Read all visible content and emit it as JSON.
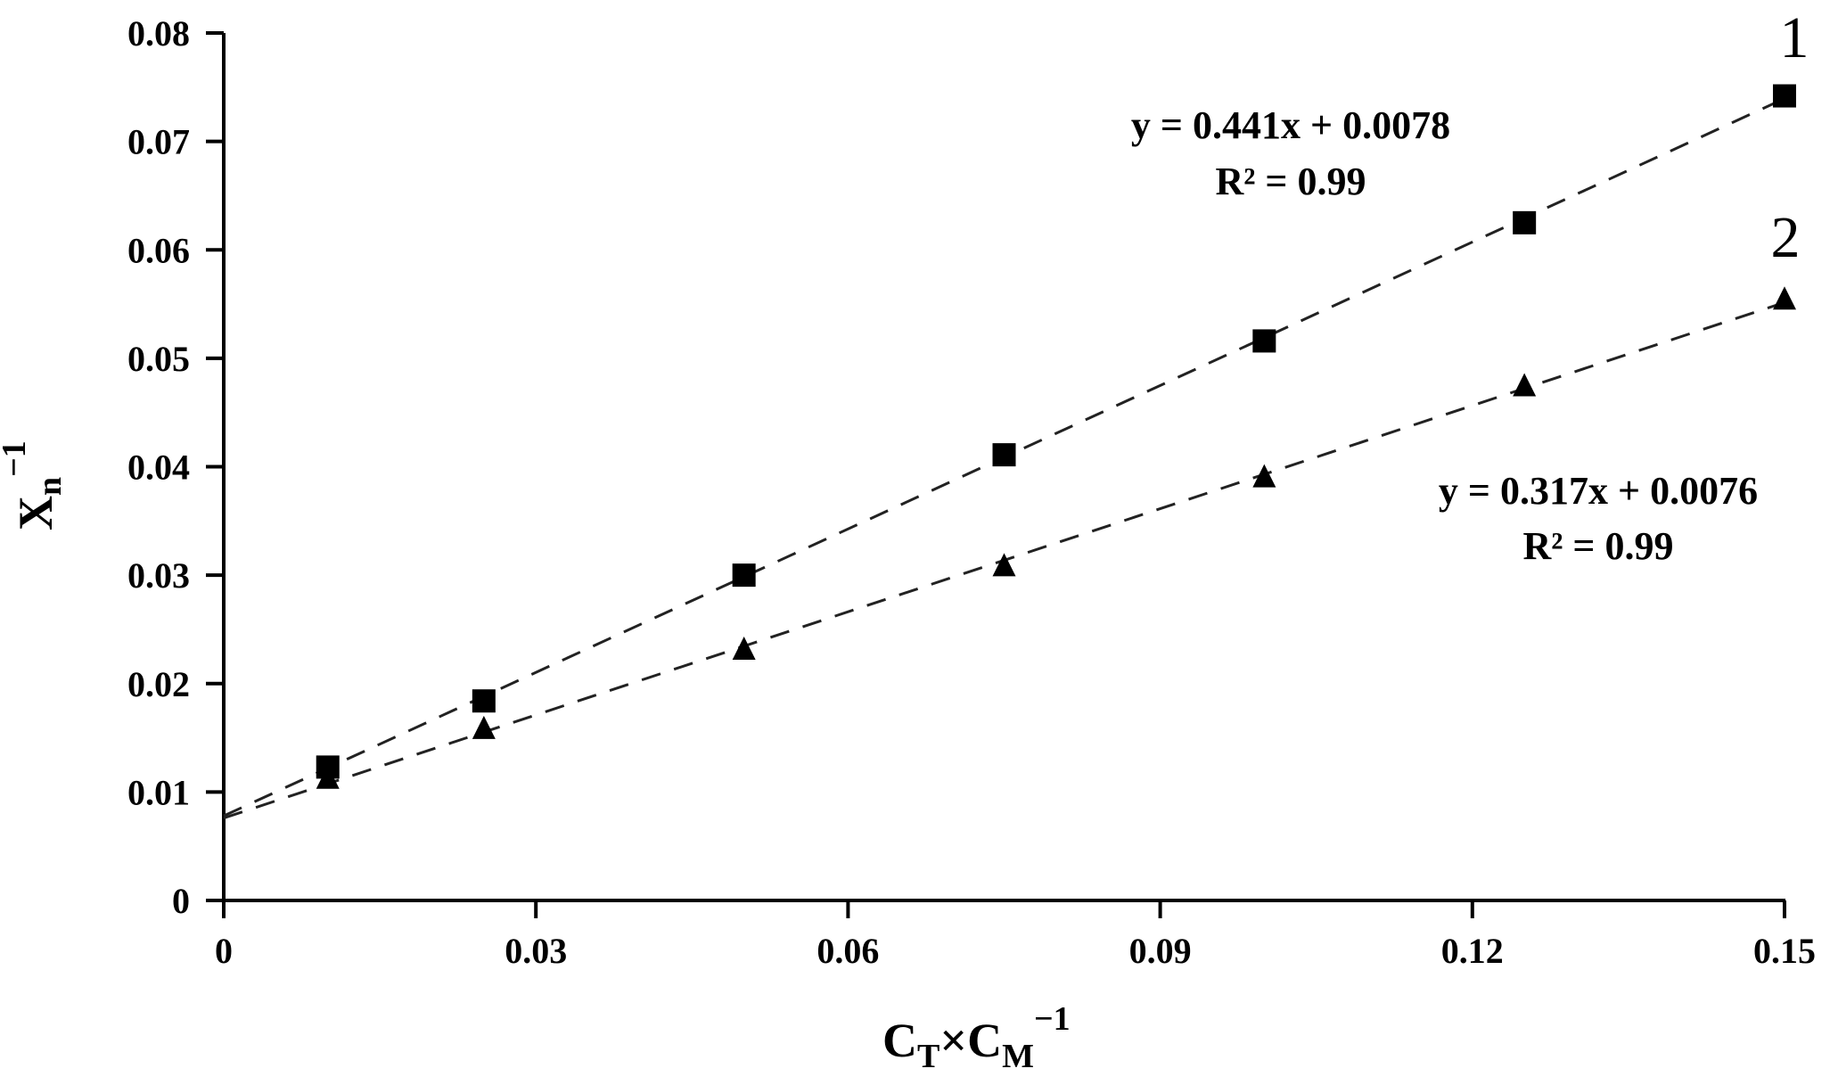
{
  "chart_data": {
    "type": "scatter",
    "title": "",
    "xlabel": "CT×CM−1",
    "ylabel": "Xn−1",
    "xlim": [
      0,
      0.15
    ],
    "ylim": [
      0,
      0.08
    ],
    "grid": false,
    "legend": "none (series numbered 1 and 2 at right end of lines)",
    "x_ticks": [
      "0",
      "0.03",
      "0.06",
      "0.09",
      "0.12",
      "0.15"
    ],
    "y_ticks": [
      "0",
      "0.01",
      "0.02",
      "0.03",
      "0.04",
      "0.05",
      "0.06",
      "0.07",
      "0.08"
    ],
    "x": [
      0.01,
      0.025,
      0.05,
      0.075,
      0.1,
      0.125,
      0.15
    ],
    "series": [
      {
        "name": "1",
        "marker": "square",
        "values": [
          0.0123,
          0.0184,
          0.03,
          0.0411,
          0.0516,
          0.0625,
          0.0742
        ],
        "trendline": {
          "slope": 0.441,
          "intercept": 0.0078,
          "style": "dashed"
        },
        "equation": "y = 0.441x + 0.0078",
        "r2": "R² = 0.99"
      },
      {
        "name": "2",
        "marker": "triangle",
        "values": [
          0.0112,
          0.0158,
          0.0231,
          0.0308,
          0.039,
          0.0474,
          0.0554
        ],
        "trendline": {
          "slope": 0.317,
          "intercept": 0.0076,
          "style": "dashed"
        },
        "equation": "y = 0.317x + 0.0076",
        "r2": "R² = 0.99"
      }
    ]
  },
  "labels": {
    "series1": "1",
    "series2": "2",
    "eq1": "y = 0.441x + 0.0078",
    "r2_1": "R² = 0.99",
    "eq2": "y = 0.317x + 0.0076",
    "r2_2": "R² = 0.99",
    "xlabel_main1": "C",
    "xlabel_sub1": "T",
    "xlabel_times": "×C",
    "xlabel_sub2": "M",
    "xlabel_sup": "−1",
    "ylabel_main": "X",
    "ylabel_sub": "n",
    "ylabel_sup": "−1"
  }
}
